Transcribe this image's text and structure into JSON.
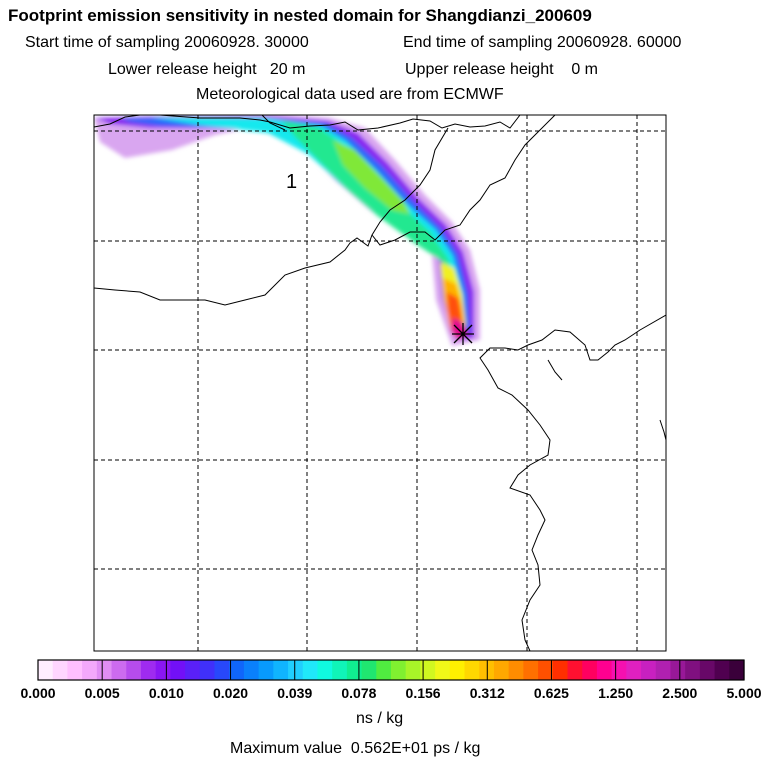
{
  "header": {
    "title": "Footprint emission sensitivity in nested domain for Shangdianzi_200609",
    "start_time": "Start time of sampling 20060928. 30000",
    "end_time": "End time of sampling 20060928. 60000",
    "lower_height": "Lower release height   20 m",
    "upper_height": "Upper release height    0 m",
    "met_source": "Meteorological data used are from ECMWF"
  },
  "map": {
    "cluster_label": "1",
    "release_marker": "release-site-star"
  },
  "colorbar": {
    "segment_colors": [
      "#ffeeff",
      "#ffd6ff",
      "#ffbfff",
      "#f3a8fb",
      "#e08df4",
      "#cc6bef",
      "#b64ced",
      "#9f2bf0",
      "#8a16f4",
      "#7210f7",
      "#5a20f8",
      "#4030fa",
      "#2848fb",
      "#1066fb",
      "#0a80fc",
      "#089afd",
      "#10b4fe",
      "#20cefe",
      "#20e8fa",
      "#10fae0",
      "#10f5b8",
      "#10ee90",
      "#20e670",
      "#50ec40",
      "#80f030",
      "#a8f428",
      "#d0f820",
      "#f0f818",
      "#fff000",
      "#ffd800",
      "#ffbf00",
      "#ffa800",
      "#ff8c00",
      "#ff7000",
      "#ff5000",
      "#ff2f00",
      "#ff1030",
      "#ff0060",
      "#ff0090",
      "#f510b0",
      "#e020c0",
      "#c820c0",
      "#b020b0",
      "#981898",
      "#801080",
      "#680868",
      "#500050",
      "#3a003a"
    ],
    "major_colors": [
      "#ffffff",
      "#c060e8",
      "#8a16f4",
      "#2060fa",
      "#10d8fc",
      "#10ee90",
      "#a8f428",
      "#ffd800",
      "#ff7000",
      "#ff0060",
      "#d020b8",
      "#601060"
    ],
    "tick_labels": [
      "0.000",
      "0.005",
      "0.010",
      "0.020",
      "0.039",
      "0.078",
      "0.156",
      "0.312",
      "0.625",
      "1.250",
      "2.500",
      "5.000"
    ],
    "units": "ns / kg",
    "max_value": "Maximum value  0.562E+01 ps / kg"
  }
}
